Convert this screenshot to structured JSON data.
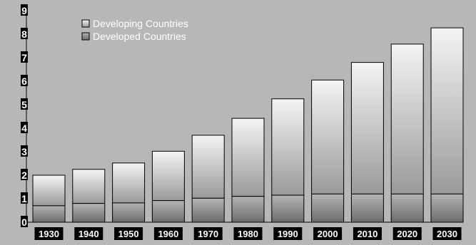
{
  "chart_data": {
    "type": "bar",
    "stacked": true,
    "categories": [
      "1930",
      "1940",
      "1950",
      "1960",
      "1970",
      "1980",
      "1990",
      "2000",
      "2010",
      "2020",
      "2030"
    ],
    "series": [
      {
        "name": "Developed Countries",
        "values": [
          0.7,
          0.8,
          0.82,
          0.92,
          1.02,
          1.1,
          1.15,
          1.2,
          1.2,
          1.2,
          1.2
        ]
      },
      {
        "name": "Developing Countries",
        "values": [
          1.3,
          1.45,
          1.7,
          2.1,
          2.68,
          3.32,
          4.1,
          4.85,
          5.6,
          6.38,
          7.07
        ]
      }
    ],
    "y_ticks": [
      "0",
      "1",
      "2",
      "3",
      "4",
      "5",
      "6",
      "7",
      "8",
      "9"
    ],
    "ylim": [
      0,
      9
    ],
    "title": "",
    "xlabel": "",
    "ylabel": "",
    "grid": false,
    "legend_position": "top-left"
  },
  "colors": {
    "background": "#b7b7b7",
    "developing_top": "#f4f4f4",
    "developing_bottom": "#9a9a9a",
    "developed_top": "#b4b4b4",
    "developed_bottom": "#6c6c6c",
    "axis": "#000000",
    "label_bg": "#000000",
    "label_text": "#ffffff"
  }
}
